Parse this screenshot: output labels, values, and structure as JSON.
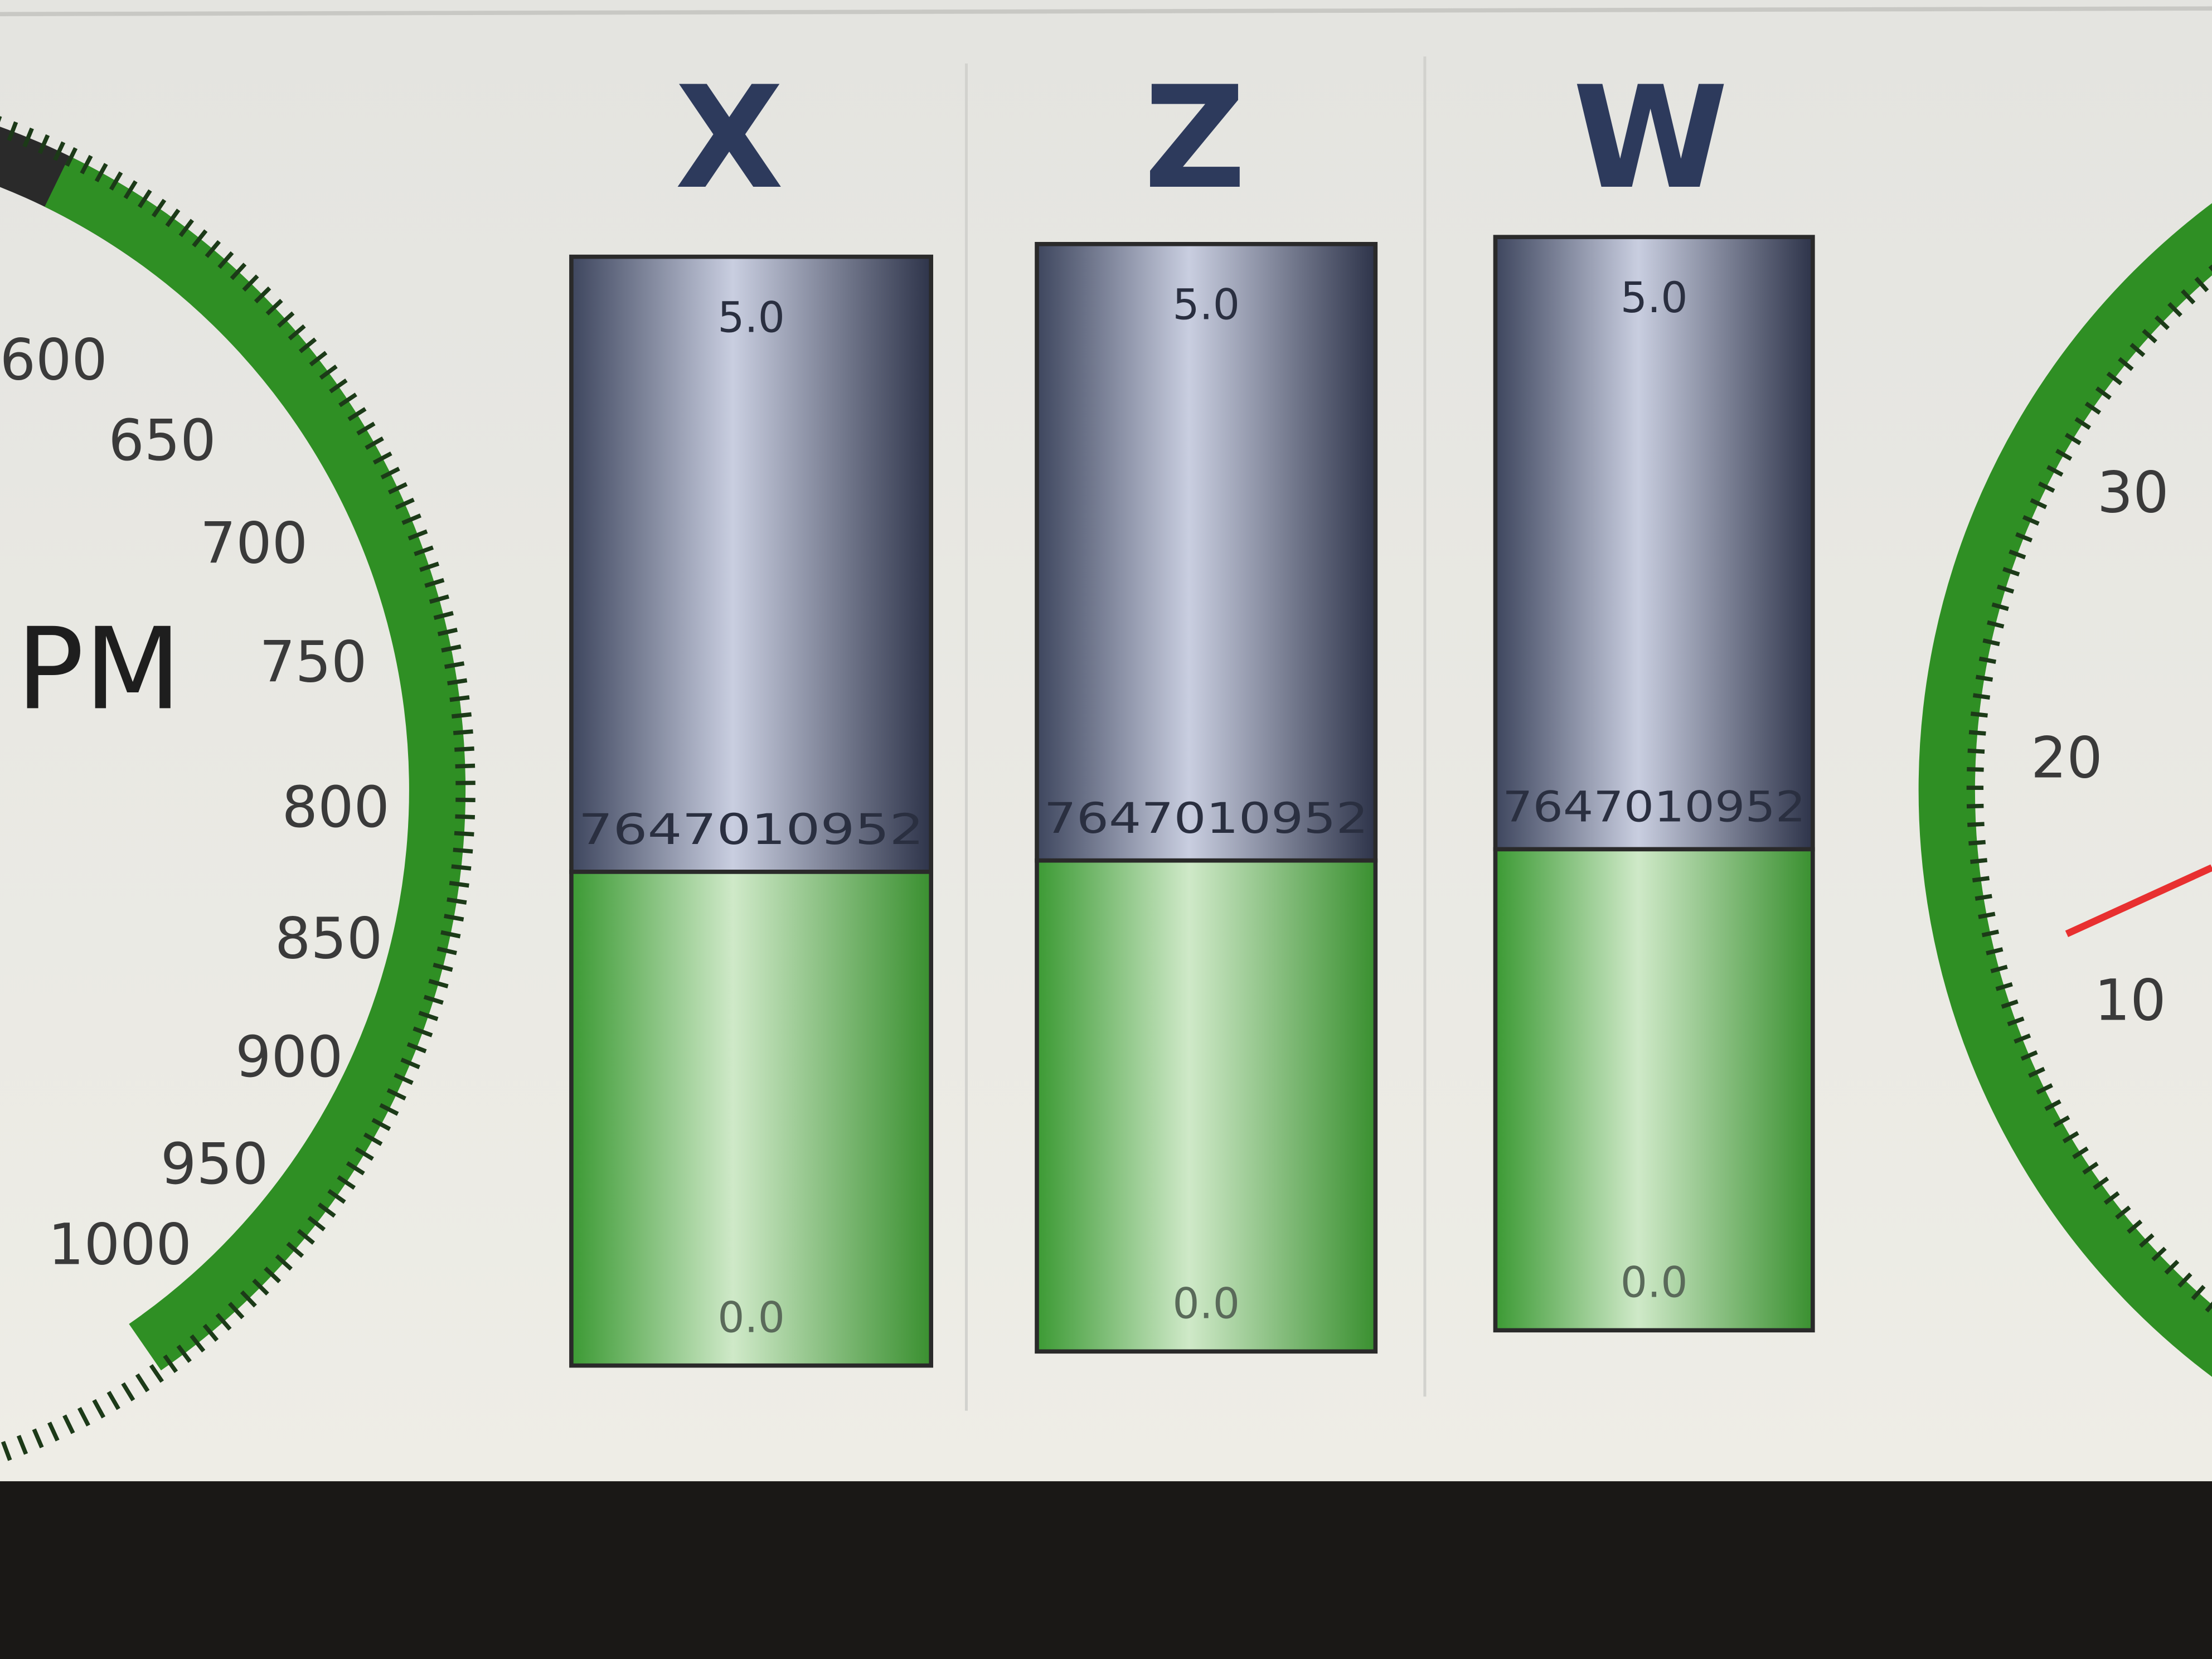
{
  "left_gauge": {
    "unit": "PM",
    "tick_labels": [
      "600",
      "650",
      "700",
      "750",
      "800",
      "850",
      "900",
      "950",
      "1000"
    ]
  },
  "bars": [
    {
      "label": "X",
      "max": "5.0",
      "value": "7647010952",
      "min": "0.0"
    },
    {
      "label": "Z",
      "max": "5.0",
      "value": "7647010952",
      "min": "0.0"
    },
    {
      "label": "W",
      "max": "5.0",
      "value": "7647010952",
      "min": "0.0"
    }
  ],
  "right_gauge": {
    "tick_labels": [
      "30",
      "20",
      "10"
    ]
  }
}
